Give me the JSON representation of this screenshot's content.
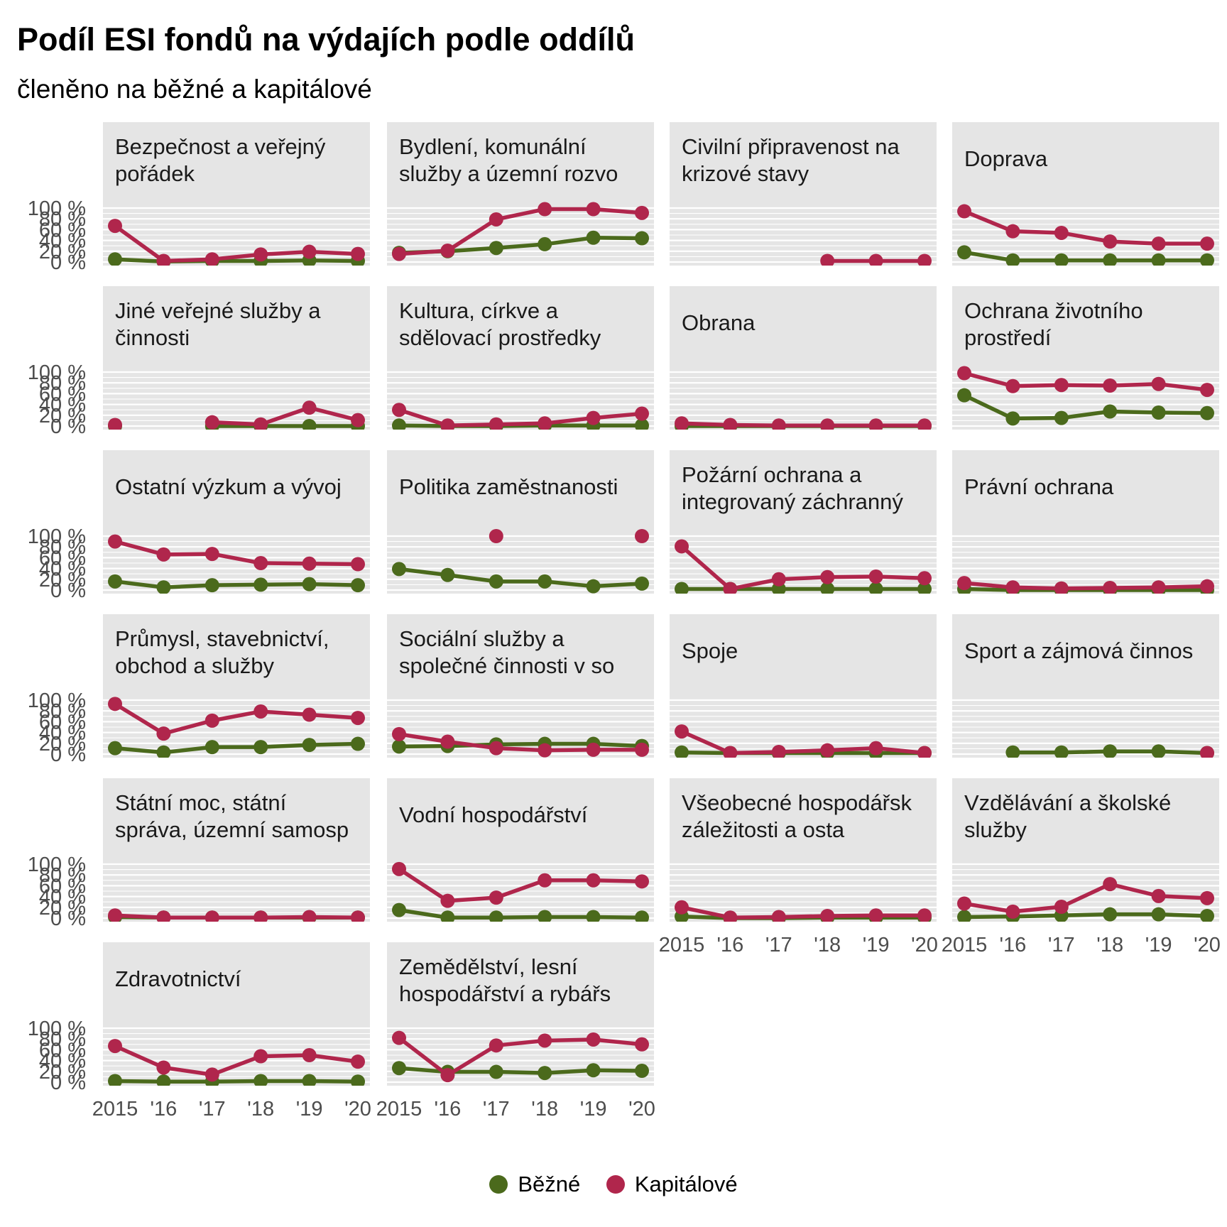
{
  "chart_data": {
    "type": "line",
    "title": "Podíl ESI fondů na výdajích podle oddílů",
    "subtitle": "členěno na běžné a kapitálové",
    "x": [
      "2015",
      "'16",
      "'17",
      "'18",
      "'19",
      "'20"
    ],
    "ylim": [
      0,
      1
    ],
    "y_ticks": [
      "0 %",
      "20 %",
      "40 %",
      "60 %",
      "80 %",
      "100 %"
    ],
    "grid": true,
    "legend_position": "bottom",
    "legend": [
      {
        "name": "Běžné",
        "color": "#4b6a1c"
      },
      {
        "name": "Kapitálové",
        "color": "#b0264c"
      }
    ],
    "facets": [
      {
        "title_lines": [
          "Bezpečnost a veřejný",
          "pořádek"
        ],
        "bezne": [
          0.05,
          0.01,
          0.02,
          0.02,
          0.03,
          0.02
        ],
        "kapitalove": [
          0.67,
          0.02,
          0.05,
          0.14,
          0.19,
          0.15
        ]
      },
      {
        "title_lines": [
          "Bydlení, komunální",
          "služby a územní rozvo"
        ],
        "bezne": [
          0.17,
          0.2,
          0.26,
          0.33,
          0.45,
          0.44
        ],
        "kapitalove": [
          0.15,
          0.21,
          0.79,
          0.98,
          0.98,
          0.91
        ]
      },
      {
        "title_lines": [
          "Civilní připravenost na",
          "krizové stavy"
        ],
        "bezne": [
          null,
          null,
          null,
          null,
          null,
          null
        ],
        "kapitalove": [
          null,
          null,
          null,
          0.02,
          0.02,
          0.02
        ]
      },
      {
        "title_lines": [
          "Doprava"
        ],
        "bezne": [
          0.18,
          0.03,
          0.03,
          0.03,
          0.03,
          0.03
        ],
        "kapitalove": [
          0.94,
          0.57,
          0.54,
          0.38,
          0.34,
          0.34
        ]
      },
      {
        "title_lines": [
          "Jiné veřejné služby a",
          "činnosti"
        ],
        "bezne": [
          0.0,
          null,
          0.0,
          0.0,
          0.0,
          0.0
        ],
        "kapitalove": [
          0.02,
          null,
          0.07,
          0.03,
          0.34,
          0.11
        ]
      },
      {
        "title_lines": [
          "Kultura, církve a",
          "sdělovací prostředky"
        ],
        "bezne": [
          0.01,
          0.0,
          0.0,
          0.01,
          0.01,
          0.01
        ],
        "kapitalove": [
          0.3,
          0.01,
          0.03,
          0.05,
          0.15,
          0.23
        ]
      },
      {
        "title_lines": [
          "Obrana"
        ],
        "bezne": [
          0.0,
          0.0,
          0.0,
          0.0,
          0.0,
          0.0
        ],
        "kapitalove": [
          0.05,
          0.02,
          0.01,
          0.01,
          0.01,
          0.01
        ]
      },
      {
        "title_lines": [
          "Ochrana životního",
          "prostředí"
        ],
        "bezne": [
          0.57,
          0.14,
          0.15,
          0.27,
          0.25,
          0.24
        ],
        "kapitalove": [
          0.98,
          0.74,
          0.76,
          0.75,
          0.78,
          0.67
        ]
      },
      {
        "title_lines": [
          "Ostatní výzkum a vývoj"
        ],
        "bezne": [
          0.16,
          0.05,
          0.09,
          0.1,
          0.11,
          0.09
        ],
        "kapitalove": [
          0.9,
          0.66,
          0.67,
          0.5,
          0.49,
          0.48
        ]
      },
      {
        "title_lines": [
          "Politika zaměstnanosti"
        ],
        "bezne": [
          0.39,
          0.28,
          0.16,
          0.16,
          0.07,
          0.12
        ],
        "kapitalove": [
          null,
          null,
          1.0,
          null,
          null,
          1.0
        ]
      },
      {
        "title_lines": [
          "Požární ochrana a",
          "integrovaný záchranný"
        ],
        "bezne": [
          0.02,
          0.02,
          0.02,
          0.02,
          0.02,
          0.02
        ],
        "kapitalove": [
          0.81,
          0.02,
          0.2,
          0.24,
          0.25,
          0.22
        ]
      },
      {
        "title_lines": [
          "Právní ochrana"
        ],
        "bezne": [
          0.02,
          0.0,
          0.0,
          0.0,
          0.0,
          0.0
        ],
        "kapitalove": [
          0.13,
          0.05,
          0.03,
          0.04,
          0.05,
          0.07
        ]
      },
      {
        "title_lines": [
          "Průmysl, stavebnictví,",
          "obchod a služby"
        ],
        "bezne": [
          0.11,
          0.03,
          0.13,
          0.13,
          0.17,
          0.19
        ],
        "kapitalove": [
          0.93,
          0.38,
          0.62,
          0.79,
          0.73,
          0.67
        ]
      },
      {
        "title_lines": [
          "Sociální služby a",
          "společné činnosti v so"
        ],
        "bezne": [
          0.14,
          0.15,
          0.18,
          0.19,
          0.19,
          0.15
        ],
        "kapitalove": [
          0.37,
          0.23,
          0.11,
          0.07,
          0.08,
          0.08
        ]
      },
      {
        "title_lines": [
          "Spoje"
        ],
        "bezne": [
          0.03,
          0.02,
          0.02,
          0.02,
          0.02,
          0.02
        ],
        "kapitalove": [
          0.42,
          0.02,
          0.04,
          0.07,
          0.11,
          0.02
        ]
      },
      {
        "title_lines": [
          "Sport a zájmová činnos"
        ],
        "bezne": [
          null,
          0.03,
          0.03,
          0.05,
          0.05,
          0.02
        ],
        "kapitalove": [
          null,
          null,
          null,
          null,
          null,
          0.02
        ]
      },
      {
        "title_lines": [
          "Státní moc, státní",
          "správa, územní samosp"
        ],
        "bezne": [
          0.02,
          0.01,
          0.01,
          0.01,
          0.01,
          0.01
        ],
        "kapitalove": [
          0.05,
          0.01,
          0.01,
          0.01,
          0.02,
          0.01
        ]
      },
      {
        "title_lines": [
          "Vodní hospodářství"
        ],
        "bezne": [
          0.15,
          0.01,
          0.01,
          0.02,
          0.02,
          0.01
        ],
        "kapitalove": [
          0.91,
          0.32,
          0.38,
          0.7,
          0.7,
          0.68
        ]
      },
      {
        "title_lines": [
          "Všeobecné hospodářsk",
          "záležitosti a osta"
        ],
        "bezne": [
          0.03,
          0.0,
          0.0,
          0.01,
          0.01,
          0.01
        ],
        "kapitalove": [
          0.2,
          0.01,
          0.02,
          0.04,
          0.05,
          0.05
        ]
      },
      {
        "title_lines": [
          "Vzdělávání a školské",
          "služby"
        ],
        "bezne": [
          0.02,
          0.03,
          0.05,
          0.07,
          0.07,
          0.04
        ],
        "kapitalove": [
          0.27,
          0.12,
          0.21,
          0.63,
          0.41,
          0.37
        ]
      },
      {
        "title_lines": [
          "Zdravotnictví"
        ],
        "bezne": [
          0.02,
          0.01,
          0.01,
          0.02,
          0.02,
          0.01
        ],
        "kapitalove": [
          0.67,
          0.27,
          0.14,
          0.48,
          0.5,
          0.38
        ]
      },
      {
        "title_lines": [
          "Zemědělství, lesní",
          "hospodářství a rybářs"
        ],
        "bezne": [
          0.26,
          0.19,
          0.19,
          0.17,
          0.22,
          0.21
        ],
        "kapitalove": [
          0.82,
          0.13,
          0.68,
          0.77,
          0.79,
          0.7
        ]
      }
    ]
  }
}
